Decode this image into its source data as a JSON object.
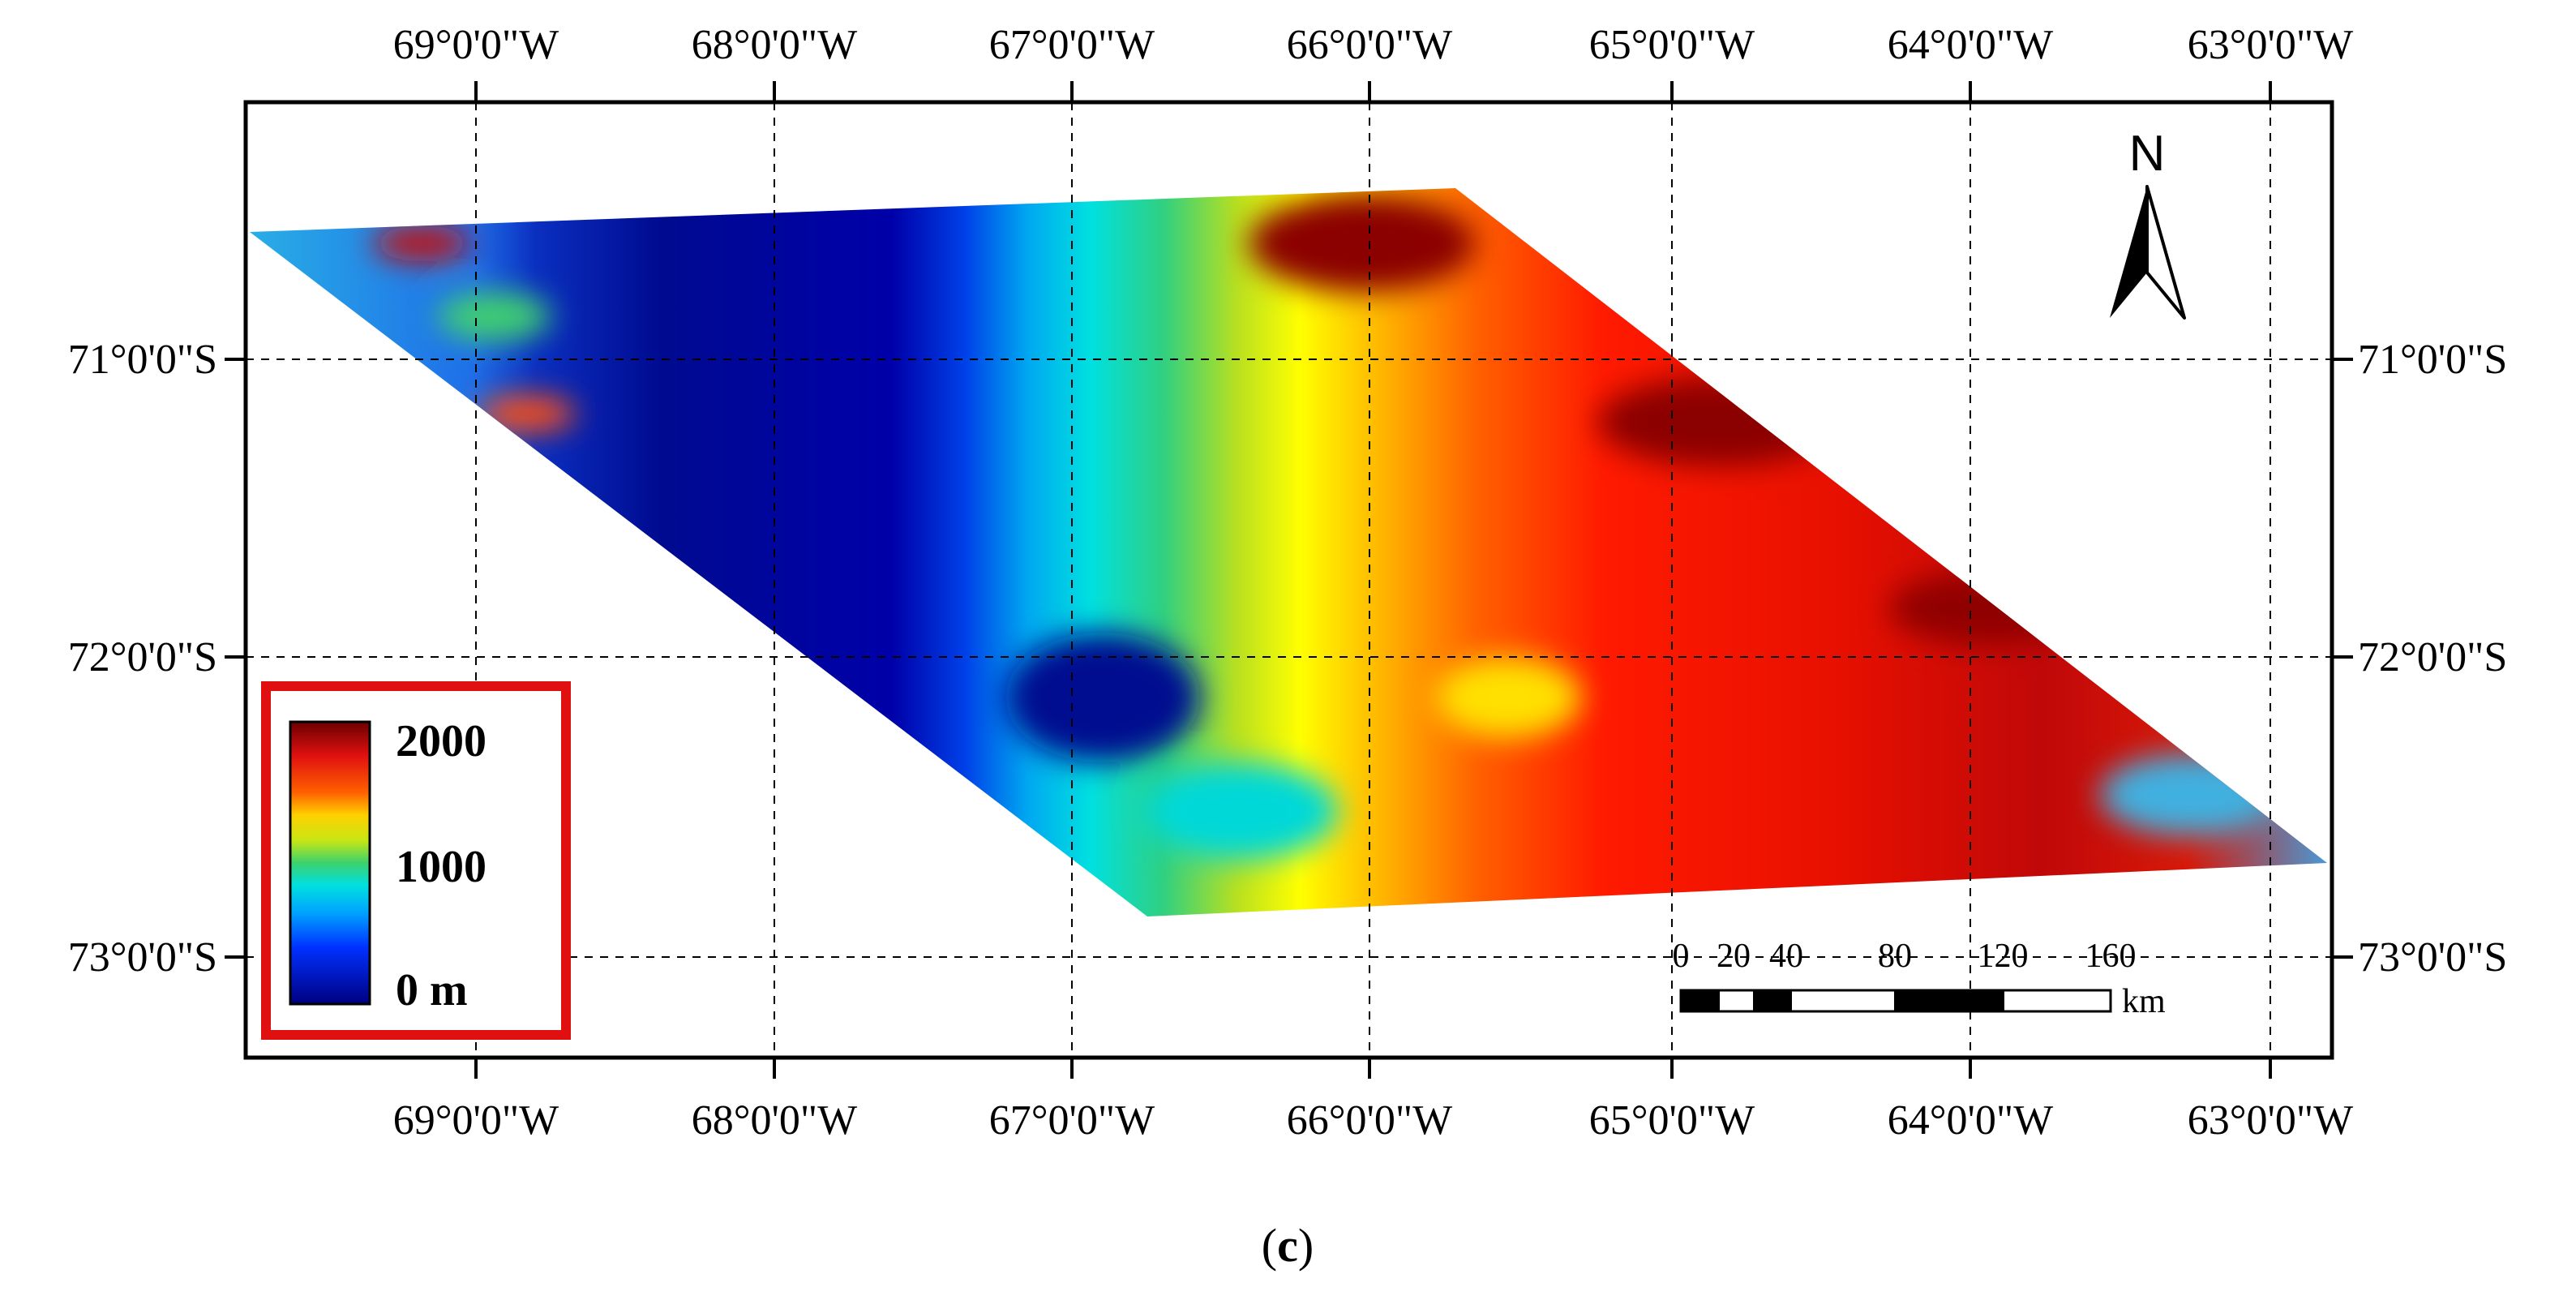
{
  "map": {
    "lon_ticks": [
      "69°0'0\"W",
      "68°0'0\"W",
      "67°0'0\"W",
      "66°0'0\"W",
      "65°0'0\"W",
      "64°0'0\"W",
      "63°0'0\"W"
    ],
    "lat_ticks": [
      "71°0'0\"S",
      "72°0'0\"S",
      "73°0'0\"S"
    ]
  },
  "legend": {
    "max_label": "2000",
    "mid_label": "1000",
    "min_label": "0 m",
    "colors": [
      "#000080",
      "#0000ff",
      "#00bfff",
      "#00e5e5",
      "#3cd26e",
      "#c8e614",
      "#ffff00",
      "#ffa500",
      "#ff2000",
      "#d01010",
      "#8b0000"
    ]
  },
  "north_arrow": {
    "label": "N",
    "icon": "north-arrow-icon"
  },
  "scale_bar": {
    "labels": [
      "0",
      "20",
      "40",
      "80",
      "120",
      "160"
    ],
    "unit": "km"
  },
  "caption": {
    "open_paren": "(",
    "letter": "c",
    "close_paren": ")"
  }
}
